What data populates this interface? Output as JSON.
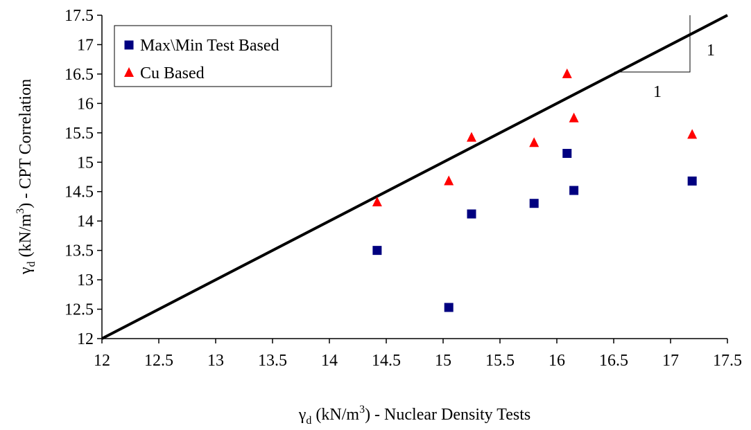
{
  "chart_data": {
    "type": "scatter",
    "x": [
      14.42,
      15.05,
      15.25,
      15.8,
      16.09,
      16.15,
      17.19
    ],
    "series": [
      {
        "name": "Max\\Min Test Based",
        "color": "#000080",
        "marker": "square",
        "values": [
          13.5,
          12.53,
          14.12,
          14.3,
          15.15,
          14.52,
          14.68
        ]
      },
      {
        "name": "Cu Based",
        "color": "#ff0000",
        "marker": "triangle",
        "values": [
          14.32,
          14.68,
          15.42,
          15.33,
          16.5,
          15.75,
          15.47
        ]
      }
    ],
    "reference_line": {
      "x": [
        12,
        17.5
      ],
      "y": [
        12,
        17.5
      ],
      "color": "#000000"
    },
    "slope_labels": [
      "1",
      "1"
    ],
    "xlabel": {
      "symbol": "γ",
      "sub": "d",
      "unit": " (kN/m",
      "sup": "3",
      "rest": ") - Nuclear Density Tests"
    },
    "ylabel": {
      "symbol": "γ",
      "sub": "d",
      "unit": " (kN/m",
      "sup": "3",
      "rest": ") - CPT Correlation"
    },
    "xlim": [
      12,
      17.5
    ],
    "ylim": [
      12,
      17.5
    ],
    "xticks": [
      12,
      12.5,
      13,
      13.5,
      14,
      14.5,
      15,
      15.5,
      16,
      16.5,
      17,
      17.5
    ],
    "yticks": [
      12,
      12.5,
      13,
      13.5,
      14,
      14.5,
      15,
      15.5,
      16,
      16.5,
      17,
      17.5
    ],
    "grid": false,
    "legend": "upper left"
  }
}
